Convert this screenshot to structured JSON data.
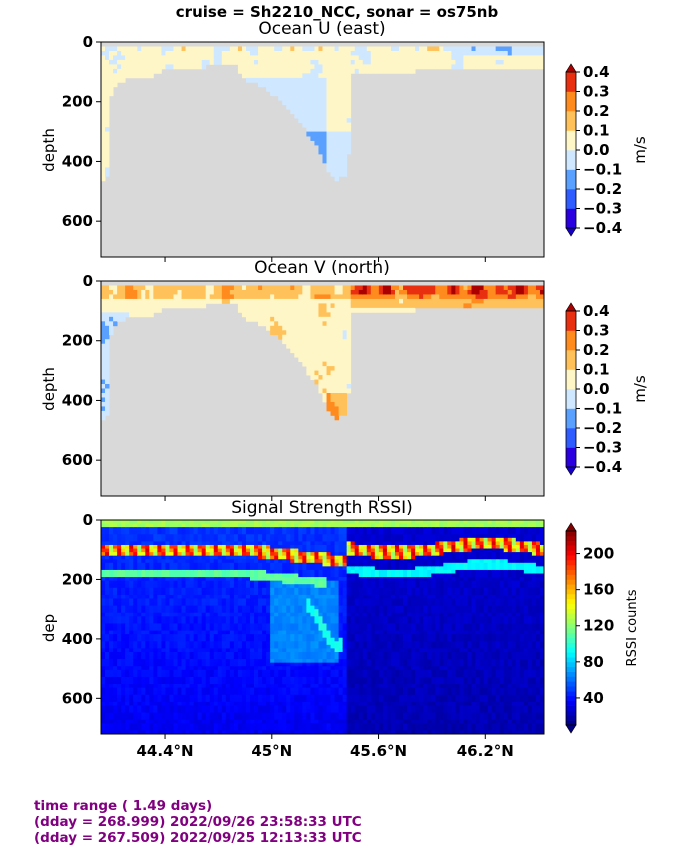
{
  "figure": {
    "suptitle": "cruise = Sh2210_NCC,  sonar = os75nb",
    "land_color": "#d9d9d9"
  },
  "chart_data": [
    {
      "type": "heatmap",
      "title": "Ocean U (east)",
      "ylabel": "depth",
      "ylim": [
        720,
        0
      ],
      "yticks": [
        "0",
        "200",
        "400",
        "600"
      ],
      "ytick_values": [
        0,
        200,
        400,
        600
      ],
      "xlim": [
        44.04,
        46.53
      ],
      "colorbar": {
        "label": "m/s",
        "ticks": [
          "0.4",
          "0.3",
          "0.2",
          "0.1",
          "0.0",
          "−0.1",
          "−0.2",
          "−0.3",
          "−0.4"
        ],
        "tick_values": [
          0.4,
          0.3,
          0.2,
          0.1,
          0.0,
          -0.1,
          -0.2,
          -0.3,
          -0.4
        ],
        "levels": [
          -0.4,
          -0.3,
          -0.2,
          -0.1,
          0.0,
          0.1,
          0.2,
          0.3,
          0.4
        ],
        "colors": [
          "#2a00e0",
          "#2f5cff",
          "#5aa0ff",
          "#cfe8ff",
          "#fff6c8",
          "#ffc25a",
          "#ff8a1e",
          "#e83010"
        ],
        "extend_low": "#1500c8",
        "extend_high": "#aa0000"
      }
    },
    {
      "type": "heatmap",
      "title": "Ocean V (north)",
      "ylabel": "depth",
      "ylim": [
        720,
        0
      ],
      "yticks": [
        "0",
        "200",
        "400",
        "600"
      ],
      "ytick_values": [
        0,
        200,
        400,
        600
      ],
      "xlim": [
        44.04,
        46.53
      ],
      "colorbar": {
        "label": "m/s",
        "ticks": [
          "0.4",
          "0.3",
          "0.2",
          "0.1",
          "0.0",
          "−0.1",
          "−0.2",
          "−0.3",
          "−0.4"
        ],
        "tick_values": [
          0.4,
          0.3,
          0.2,
          0.1,
          0.0,
          -0.1,
          -0.2,
          -0.3,
          -0.4
        ],
        "levels": [
          -0.4,
          -0.3,
          -0.2,
          -0.1,
          0.0,
          0.1,
          0.2,
          0.3,
          0.4
        ],
        "colors": [
          "#2a00e0",
          "#2f5cff",
          "#5aa0ff",
          "#cfe8ff",
          "#fff6c8",
          "#ffc25a",
          "#ff8a1e",
          "#e83010"
        ],
        "extend_low": "#1500c8",
        "extend_high": "#aa0000"
      }
    },
    {
      "type": "heatmap",
      "title": "Signal Strength RSSI)",
      "ylabel": "dep",
      "ylim": [
        720,
        0
      ],
      "yticks": [
        "0",
        "200",
        "400",
        "600"
      ],
      "ytick_values": [
        0,
        200,
        400,
        600
      ],
      "xlim": [
        44.04,
        46.53
      ],
      "xticks": [
        "44.4°N",
        "45°N",
        "45.6°N",
        "46.2°N"
      ],
      "xtick_values": [
        44.4,
        45.0,
        45.6,
        46.2
      ],
      "colorbar": {
        "label": "RSSI counts",
        "ticks": [
          "200",
          "160",
          "120",
          "80",
          "40"
        ],
        "tick_values": [
          200,
          160,
          120,
          80,
          40
        ],
        "range": [
          10,
          225
        ],
        "colormap": "jet"
      }
    }
  ],
  "footer": {
    "line1": "time range ( 1.49 days)",
    "line2": "(dday = 268.999) 2022/09/26 23:58:33 UTC",
    "line3": "(dday = 267.509) 2022/09/25 12:13:33 UTC"
  }
}
